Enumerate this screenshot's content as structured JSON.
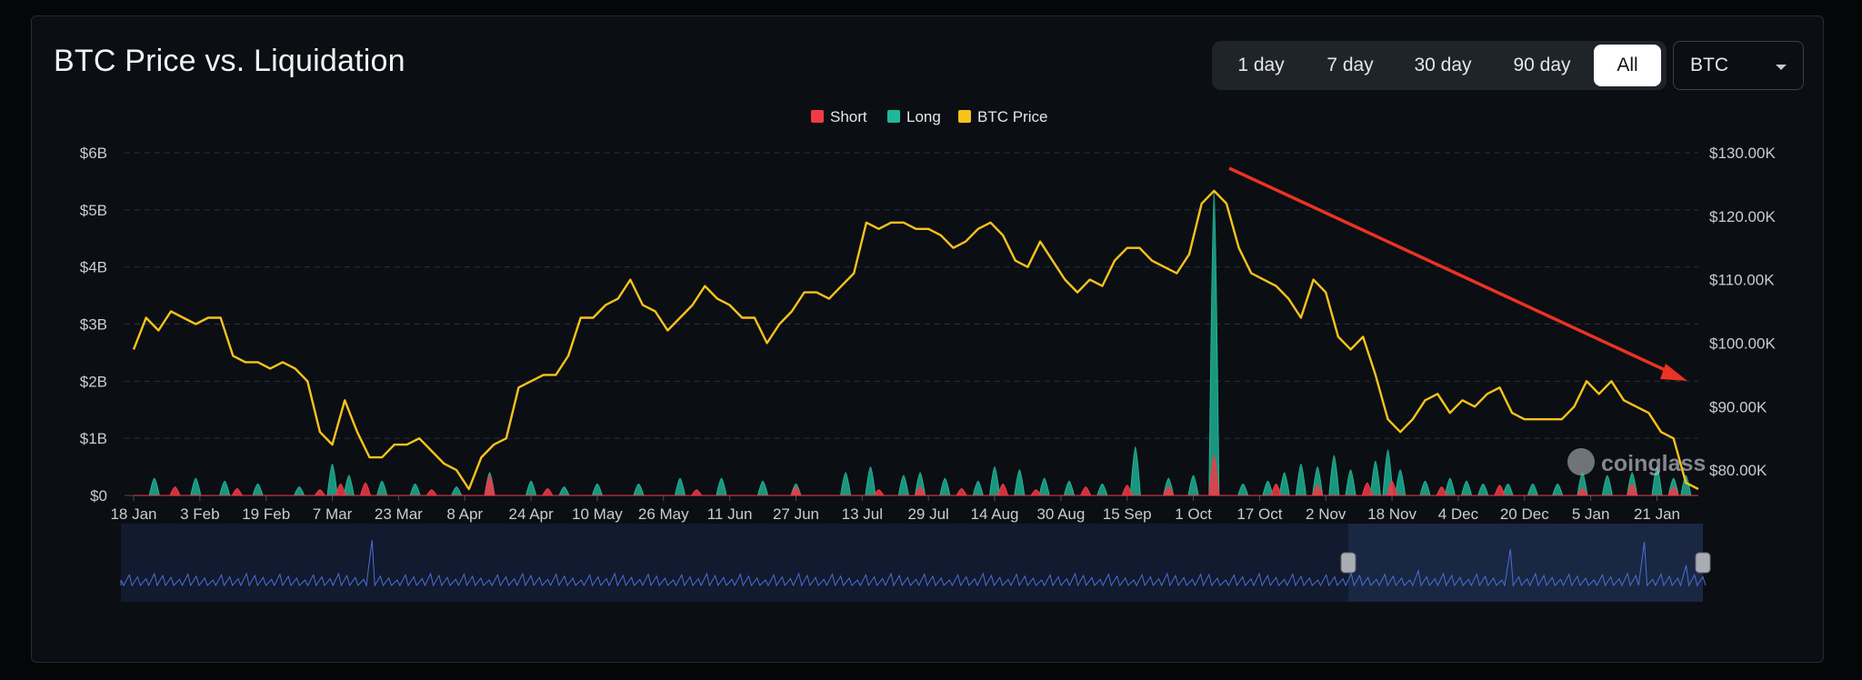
{
  "title": "BTC Price vs. Liquidation",
  "time_ranges": [
    "1 day",
    "7 day",
    "30 day",
    "90 day",
    "All"
  ],
  "active_range": "All",
  "asset_select": {
    "value": "BTC"
  },
  "watermark": "coinglass",
  "colors": {
    "short": "#f03a47",
    "long": "#1fb89a",
    "price": "#f7c31a",
    "arrow": "#ea3323",
    "navigator": "#4a6fd6"
  },
  "chart_data": {
    "type": "area",
    "title": "BTC Price vs. Liquidation",
    "legend": {
      "placement": "top-center",
      "items": [
        "Short",
        "Long",
        "BTC Price"
      ]
    },
    "x_ticks": [
      "18 Jan",
      "3 Feb",
      "19 Feb",
      "7 Mar",
      "23 Mar",
      "8 Apr",
      "24 Apr",
      "10 May",
      "26 May",
      "11 Jun",
      "27 Jun",
      "13 Jul",
      "29 Jul",
      "14 Aug",
      "30 Aug",
      "15 Sep",
      "1 Oct",
      "17 Oct",
      "2 Nov",
      "18 Nov",
      "4 Dec",
      "20 Dec",
      "5 Jan",
      "21 Jan"
    ],
    "y_left": {
      "ticks": [
        "$0",
        "$1B",
        "$2B",
        "$3B",
        "$4B",
        "$5B",
        "$6B"
      ],
      "range": [
        0,
        6
      ]
    },
    "y_right": {
      "ticks": [
        "$80.00K",
        "$90.00K",
        "$100.00K",
        "$110.00K",
        "$120.00K",
        "$130.00K"
      ],
      "range": [
        76,
        130
      ]
    },
    "grid": true,
    "series": [
      {
        "name": "BTC Price",
        "axis": "right",
        "points": [
          [
            0,
            99
          ],
          [
            3,
            104
          ],
          [
            6,
            102
          ],
          [
            9,
            105
          ],
          [
            12,
            104
          ],
          [
            15,
            103
          ],
          [
            18,
            104
          ],
          [
            21,
            104
          ],
          [
            24,
            98
          ],
          [
            27,
            97
          ],
          [
            30,
            97
          ],
          [
            33,
            96
          ],
          [
            36,
            97
          ],
          [
            39,
            96
          ],
          [
            42,
            94
          ],
          [
            45,
            86
          ],
          [
            48,
            84
          ],
          [
            51,
            91
          ],
          [
            54,
            86
          ],
          [
            57,
            82
          ],
          [
            60,
            82
          ],
          [
            63,
            84
          ],
          [
            66,
            84
          ],
          [
            69,
            85
          ],
          [
            72,
            83
          ],
          [
            75,
            81
          ],
          [
            78,
            80
          ],
          [
            81,
            77
          ],
          [
            84,
            82
          ],
          [
            87,
            84
          ],
          [
            90,
            85
          ],
          [
            93,
            93
          ],
          [
            96,
            94
          ],
          [
            99,
            95
          ],
          [
            102,
            95
          ],
          [
            105,
            98
          ],
          [
            108,
            104
          ],
          [
            111,
            104
          ],
          [
            114,
            106
          ],
          [
            117,
            107
          ],
          [
            120,
            110
          ],
          [
            123,
            106
          ],
          [
            126,
            105
          ],
          [
            129,
            102
          ],
          [
            132,
            104
          ],
          [
            135,
            106
          ],
          [
            138,
            109
          ],
          [
            141,
            107
          ],
          [
            144,
            106
          ],
          [
            147,
            104
          ],
          [
            150,
            104
          ],
          [
            153,
            100
          ],
          [
            156,
            103
          ],
          [
            159,
            105
          ],
          [
            162,
            108
          ],
          [
            165,
            108
          ],
          [
            168,
            107
          ],
          [
            171,
            109
          ],
          [
            174,
            111
          ],
          [
            177,
            119
          ],
          [
            180,
            118
          ],
          [
            183,
            119
          ],
          [
            186,
            119
          ],
          [
            189,
            118
          ],
          [
            192,
            118
          ],
          [
            195,
            117
          ],
          [
            198,
            115
          ],
          [
            201,
            116
          ],
          [
            204,
            118
          ],
          [
            207,
            119
          ],
          [
            210,
            117
          ],
          [
            213,
            113
          ],
          [
            216,
            112
          ],
          [
            219,
            116
          ],
          [
            222,
            113
          ],
          [
            225,
            110
          ],
          [
            228,
            108
          ],
          [
            231,
            110
          ],
          [
            234,
            109
          ],
          [
            237,
            113
          ],
          [
            240,
            115
          ],
          [
            243,
            115
          ],
          [
            246,
            113
          ],
          [
            249,
            112
          ],
          [
            252,
            111
          ],
          [
            255,
            114
          ],
          [
            258,
            122
          ],
          [
            261,
            124
          ],
          [
            264,
            122
          ],
          [
            267,
            115
          ],
          [
            270,
            111
          ],
          [
            273,
            110
          ],
          [
            276,
            109
          ],
          [
            279,
            107
          ],
          [
            282,
            104
          ],
          [
            285,
            110
          ],
          [
            288,
            108
          ],
          [
            291,
            101
          ],
          [
            294,
            99
          ],
          [
            297,
            101
          ],
          [
            300,
            95
          ],
          [
            303,
            88
          ],
          [
            306,
            86
          ],
          [
            309,
            88
          ],
          [
            312,
            91
          ],
          [
            315,
            92
          ],
          [
            318,
            89
          ],
          [
            321,
            91
          ],
          [
            324,
            90
          ],
          [
            327,
            92
          ],
          [
            330,
            93
          ],
          [
            333,
            89
          ],
          [
            336,
            88
          ],
          [
            339,
            88
          ],
          [
            342,
            88
          ],
          [
            345,
            88
          ],
          [
            348,
            90
          ],
          [
            351,
            94
          ],
          [
            354,
            92
          ],
          [
            357,
            94
          ],
          [
            360,
            91
          ],
          [
            363,
            90
          ],
          [
            366,
            89
          ],
          [
            369,
            86
          ],
          [
            372,
            85
          ],
          [
            375,
            78
          ],
          [
            378,
            77
          ]
        ]
      },
      {
        "name": "Long",
        "axis": "left",
        "spikes": [
          [
            5,
            0.3
          ],
          [
            15,
            0.3
          ],
          [
            22,
            0.25
          ],
          [
            30,
            0.2
          ],
          [
            40,
            0.15
          ],
          [
            48,
            0.55
          ],
          [
            52,
            0.35
          ],
          [
            60,
            0.25
          ],
          [
            68,
            0.2
          ],
          [
            78,
            0.15
          ],
          [
            86,
            0.4
          ],
          [
            96,
            0.25
          ],
          [
            104,
            0.15
          ],
          [
            112,
            0.2
          ],
          [
            122,
            0.2
          ],
          [
            132,
            0.3
          ],
          [
            142,
            0.3
          ],
          [
            152,
            0.25
          ],
          [
            160,
            0.2
          ],
          [
            172,
            0.4
          ],
          [
            178,
            0.5
          ],
          [
            186,
            0.35
          ],
          [
            190,
            0.4
          ],
          [
            196,
            0.3
          ],
          [
            204,
            0.25
          ],
          [
            208,
            0.5
          ],
          [
            214,
            0.45
          ],
          [
            220,
            0.3
          ],
          [
            226,
            0.25
          ],
          [
            234,
            0.2
          ],
          [
            242,
            0.85
          ],
          [
            250,
            0.3
          ],
          [
            256,
            0.35
          ],
          [
            261,
            5.35
          ],
          [
            268,
            0.2
          ],
          [
            274,
            0.25
          ],
          [
            278,
            0.4
          ],
          [
            282,
            0.55
          ],
          [
            286,
            0.5
          ],
          [
            290,
            0.7
          ],
          [
            294,
            0.45
          ],
          [
            300,
            0.6
          ],
          [
            303,
            0.8
          ],
          [
            306,
            0.45
          ],
          [
            312,
            0.25
          ],
          [
            318,
            0.3
          ],
          [
            322,
            0.25
          ],
          [
            326,
            0.2
          ],
          [
            332,
            0.2
          ],
          [
            338,
            0.2
          ],
          [
            344,
            0.2
          ],
          [
            350,
            0.4
          ],
          [
            356,
            0.35
          ],
          [
            362,
            0.4
          ],
          [
            368,
            0.5
          ],
          [
            372,
            0.3
          ],
          [
            375,
            0.35
          ]
        ]
      },
      {
        "name": "Short",
        "axis": "left",
        "spikes": [
          [
            10,
            0.15
          ],
          [
            25,
            0.12
          ],
          [
            45,
            0.1
          ],
          [
            50,
            0.2
          ],
          [
            56,
            0.22
          ],
          [
            72,
            0.1
          ],
          [
            86,
            0.35
          ],
          [
            100,
            0.12
          ],
          [
            136,
            0.1
          ],
          [
            160,
            0.15
          ],
          [
            180,
            0.1
          ],
          [
            190,
            0.15
          ],
          [
            200,
            0.12
          ],
          [
            210,
            0.2
          ],
          [
            218,
            0.1
          ],
          [
            230,
            0.15
          ],
          [
            240,
            0.18
          ],
          [
            250,
            0.15
          ],
          [
            261,
            0.7
          ],
          [
            276,
            0.2
          ],
          [
            286,
            0.18
          ],
          [
            298,
            0.22
          ],
          [
            304,
            0.25
          ],
          [
            316,
            0.15
          ],
          [
            330,
            0.18
          ],
          [
            350,
            0.12
          ],
          [
            362,
            0.2
          ],
          [
            372,
            0.15
          ]
        ]
      }
    ],
    "annotations": [
      {
        "type": "arrow",
        "description": "downtrend arrow from Oct high to late Jan"
      }
    ]
  }
}
